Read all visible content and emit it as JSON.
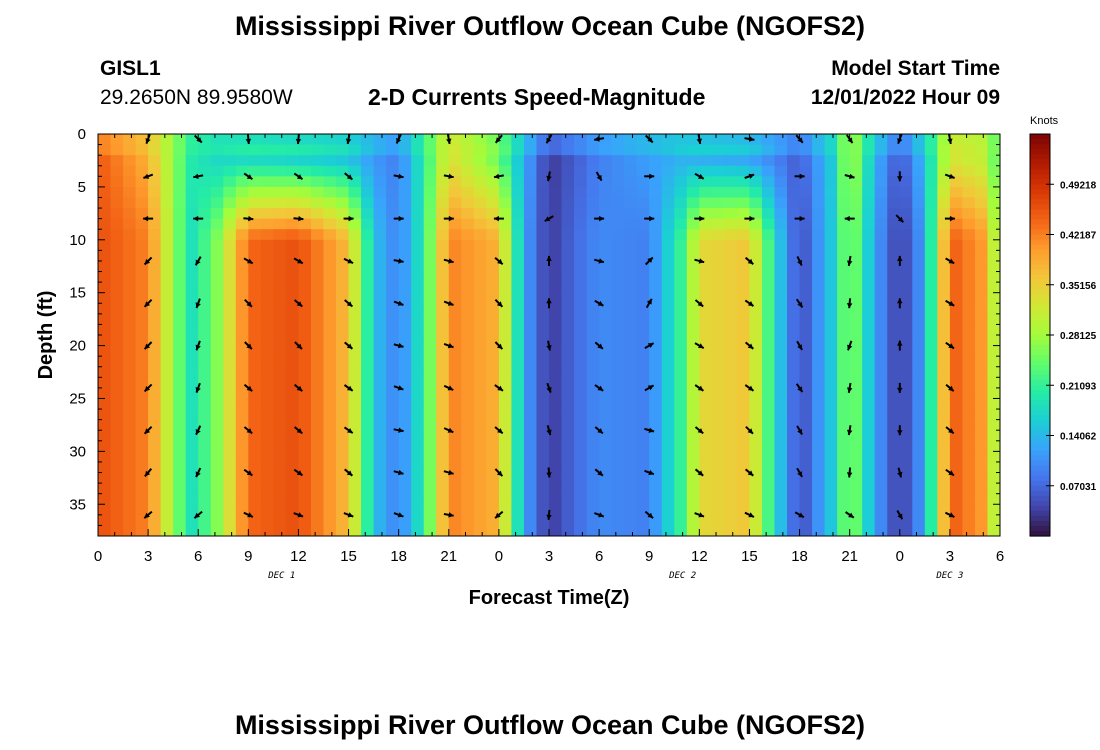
{
  "page": {
    "title": "Mississippi River Outflow Ocean Cube (NGOFS2)",
    "station": "GISL1",
    "coords": "29.2650N  89.9580W",
    "model_start_label": "Model Start Time",
    "model_start_value": "12/01/2022 Hour 09",
    "bottom_title": "Mississippi River Outflow Ocean Cube (NGOFS2)"
  },
  "chart_data": {
    "type": "heatmap",
    "title": "2-D Currents Speed-Magnitude",
    "xlabel": "Forecast Time(Z)",
    "ylabel": "Depth (ft)",
    "units": "Knots",
    "x_tick_labels": [
      "0",
      "3",
      "6",
      "9",
      "12",
      "15",
      "18",
      "21",
      "0",
      "3",
      "6",
      "9",
      "12",
      "15",
      "18",
      "21",
      "0",
      "3",
      "6"
    ],
    "x_hours": [
      0,
      3,
      6,
      9,
      12,
      15,
      18,
      21,
      24,
      27,
      30,
      33,
      36,
      39,
      42,
      45,
      48,
      51,
      54
    ],
    "date_labels": [
      {
        "label": "DEC 1",
        "hour": 11
      },
      {
        "label": "DEC 2",
        "hour": 35
      },
      {
        "label": "DEC 3",
        "hour": 51
      }
    ],
    "y_ticks": [
      0,
      5,
      10,
      15,
      20,
      25,
      30,
      35
    ],
    "ylim": [
      38,
      0
    ],
    "xlim": [
      0,
      54
    ],
    "colorbar_labels": [
      "0.49218",
      "0.42187",
      "0.35156",
      "0.28125",
      "0.21093",
      "0.14062",
      "0.07031"
    ],
    "colorbar_values": [
      0.49218,
      0.42187,
      0.35156,
      0.28125,
      0.21093,
      0.14062,
      0.07031
    ],
    "zlim": [
      0,
      0.5625
    ],
    "colormap": [
      "#30123b",
      "#4145ab",
      "#4675ed",
      "#39a2fc",
      "#1bcfd4",
      "#24eca6",
      "#61fc6c",
      "#a4fc3b",
      "#d1e834",
      "#f3c63a",
      "#fe9b2d",
      "#f36315",
      "#d93806",
      "#b11901",
      "#7a0402"
    ],
    "series": [
      {
        "hour": 0,
        "speed_upper": 0.45,
        "speed_lower": 0.46
      },
      {
        "hour": 3,
        "speed_upper": 0.38,
        "speed_lower": 0.42
      },
      {
        "hour": 5.5,
        "speed_upper": 0.2,
        "speed_lower": 0.18
      },
      {
        "hour": 7,
        "speed_upper": 0.17,
        "speed_lower": 0.25
      },
      {
        "hour": 9,
        "speed_upper": 0.16,
        "speed_lower": 0.44
      },
      {
        "hour": 12,
        "speed_upper": 0.15,
        "speed_lower": 0.46
      },
      {
        "hour": 15,
        "speed_upper": 0.14,
        "speed_lower": 0.37
      },
      {
        "hour": 16.5,
        "speed_upper": 0.11,
        "speed_lower": 0.15
      },
      {
        "hour": 18,
        "speed_upper": 0.09,
        "speed_lower": 0.09
      },
      {
        "hour": 19.5,
        "speed_upper": 0.2,
        "speed_lower": 0.2
      },
      {
        "hour": 21,
        "speed_upper": 0.33,
        "speed_lower": 0.42
      },
      {
        "hour": 24,
        "speed_upper": 0.24,
        "speed_lower": 0.38
      },
      {
        "hour": 25.5,
        "speed_upper": 0.13,
        "speed_lower": 0.12
      },
      {
        "hour": 27,
        "speed_upper": 0.03,
        "speed_lower": 0.03
      },
      {
        "hour": 28.5,
        "speed_upper": 0.06,
        "speed_lower": 0.07
      },
      {
        "hour": 30,
        "speed_upper": 0.09,
        "speed_lower": 0.1
      },
      {
        "hour": 33,
        "speed_upper": 0.12,
        "speed_lower": 0.09
      },
      {
        "hour": 35,
        "speed_upper": 0.13,
        "speed_lower": 0.22
      },
      {
        "hour": 36,
        "speed_upper": 0.12,
        "speed_lower": 0.34
      },
      {
        "hour": 39,
        "speed_upper": 0.11,
        "speed_lower": 0.36
      },
      {
        "hour": 40.5,
        "speed_upper": 0.09,
        "speed_lower": 0.18
      },
      {
        "hour": 42,
        "speed_upper": 0.06,
        "speed_lower": 0.04
      },
      {
        "hour": 44,
        "speed_upper": 0.16,
        "speed_lower": 0.16
      },
      {
        "hour": 45,
        "speed_upper": 0.3,
        "speed_lower": 0.28
      },
      {
        "hour": 46.5,
        "speed_upper": 0.14,
        "speed_lower": 0.12
      },
      {
        "hour": 48,
        "speed_upper": 0.05,
        "speed_lower": 0.03
      },
      {
        "hour": 49.5,
        "speed_upper": 0.15,
        "speed_lower": 0.12
      },
      {
        "hour": 51,
        "speed_upper": 0.32,
        "speed_lower": 0.45
      },
      {
        "hour": 53,
        "speed_upper": 0.3,
        "speed_lower": 0.4
      },
      {
        "hour": 54,
        "speed_upper": 0.22,
        "speed_lower": 0.25
      }
    ],
    "vector_times": [
      3,
      6,
      9,
      12,
      15,
      18,
      21,
      24,
      27,
      30,
      33,
      36,
      39,
      42,
      45,
      48,
      51
    ],
    "vector_depths": [
      0,
      4,
      8,
      12,
      16,
      20,
      24,
      28,
      32,
      36
    ],
    "vector_angles_deg": [
      [
        110,
        45,
        85,
        95,
        100,
        115,
        80,
        130,
        120,
        170,
        45,
        80,
        10,
        50,
        55,
        110,
        80
      ],
      [
        160,
        170,
        35,
        35,
        40,
        10,
        10,
        170,
        100,
        60,
        0,
        30,
        -20,
        0,
        15,
        90,
        20
      ],
      [
        180,
        180,
        5,
        5,
        0,
        0,
        0,
        180,
        150,
        0,
        0,
        0,
        0,
        0,
        180,
        45,
        0
      ],
      [
        135,
        120,
        30,
        30,
        25,
        10,
        15,
        40,
        -90,
        15,
        -45,
        15,
        40,
        65,
        100,
        -90,
        30
      ],
      [
        135,
        110,
        45,
        40,
        40,
        20,
        20,
        45,
        -90,
        30,
        -60,
        40,
        35,
        55,
        95,
        -90,
        30
      ],
      [
        135,
        110,
        45,
        45,
        40,
        15,
        20,
        45,
        80,
        40,
        -30,
        30,
        40,
        60,
        110,
        -90,
        35
      ],
      [
        135,
        110,
        40,
        40,
        35,
        20,
        25,
        35,
        70,
        35,
        -30,
        35,
        35,
        55,
        100,
        90,
        40
      ],
      [
        135,
        115,
        40,
        40,
        35,
        10,
        25,
        40,
        75,
        40,
        15,
        40,
        45,
        60,
        100,
        90,
        40
      ],
      [
        130,
        115,
        35,
        35,
        40,
        15,
        15,
        45,
        85,
        40,
        20,
        40,
        40,
        60,
        95,
        75,
        35
      ],
      [
        140,
        140,
        25,
        20,
        20,
        20,
        10,
        140,
        95,
        20,
        40,
        20,
        25,
        30,
        35,
        60,
        25
      ]
    ]
  }
}
